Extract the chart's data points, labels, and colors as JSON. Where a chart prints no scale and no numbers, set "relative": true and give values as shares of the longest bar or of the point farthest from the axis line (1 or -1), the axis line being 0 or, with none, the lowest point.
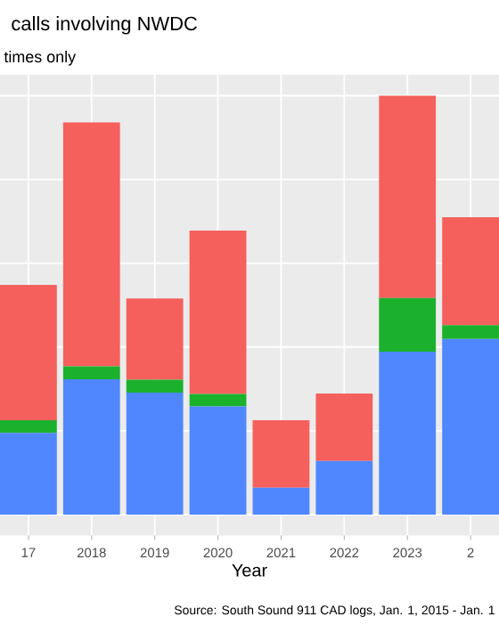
{
  "chart_data": {
    "type": "bar",
    "title": "calls involving NWDC",
    "subtitle": "times only",
    "xlabel": "Year",
    "categories": [
      "17",
      "2018",
      "2019",
      "2020",
      "2021",
      "2022",
      "2023",
      "2"
    ],
    "stacked": true,
    "relative": true,
    "grid": true,
    "series": [
      {
        "color": "#5087ff",
        "values": [
          0.195,
          0.323,
          0.291,
          0.258,
          0.064,
          0.128,
          0.389,
          0.419
        ]
      },
      {
        "color": "#1bb12d",
        "values": [
          0.03,
          0.031,
          0.031,
          0.03,
          0,
          0,
          0.128,
          0.033
        ]
      },
      {
        "color": "#f5605c",
        "values": [
          0.323,
          0.582,
          0.194,
          0.39,
          0.161,
          0.161,
          0.483,
          0.258
        ]
      }
    ],
    "annotations": [
      "Source: South Sound 911 CAD logs, Jan. 1, 2015 - Jan. 1"
    ]
  }
}
